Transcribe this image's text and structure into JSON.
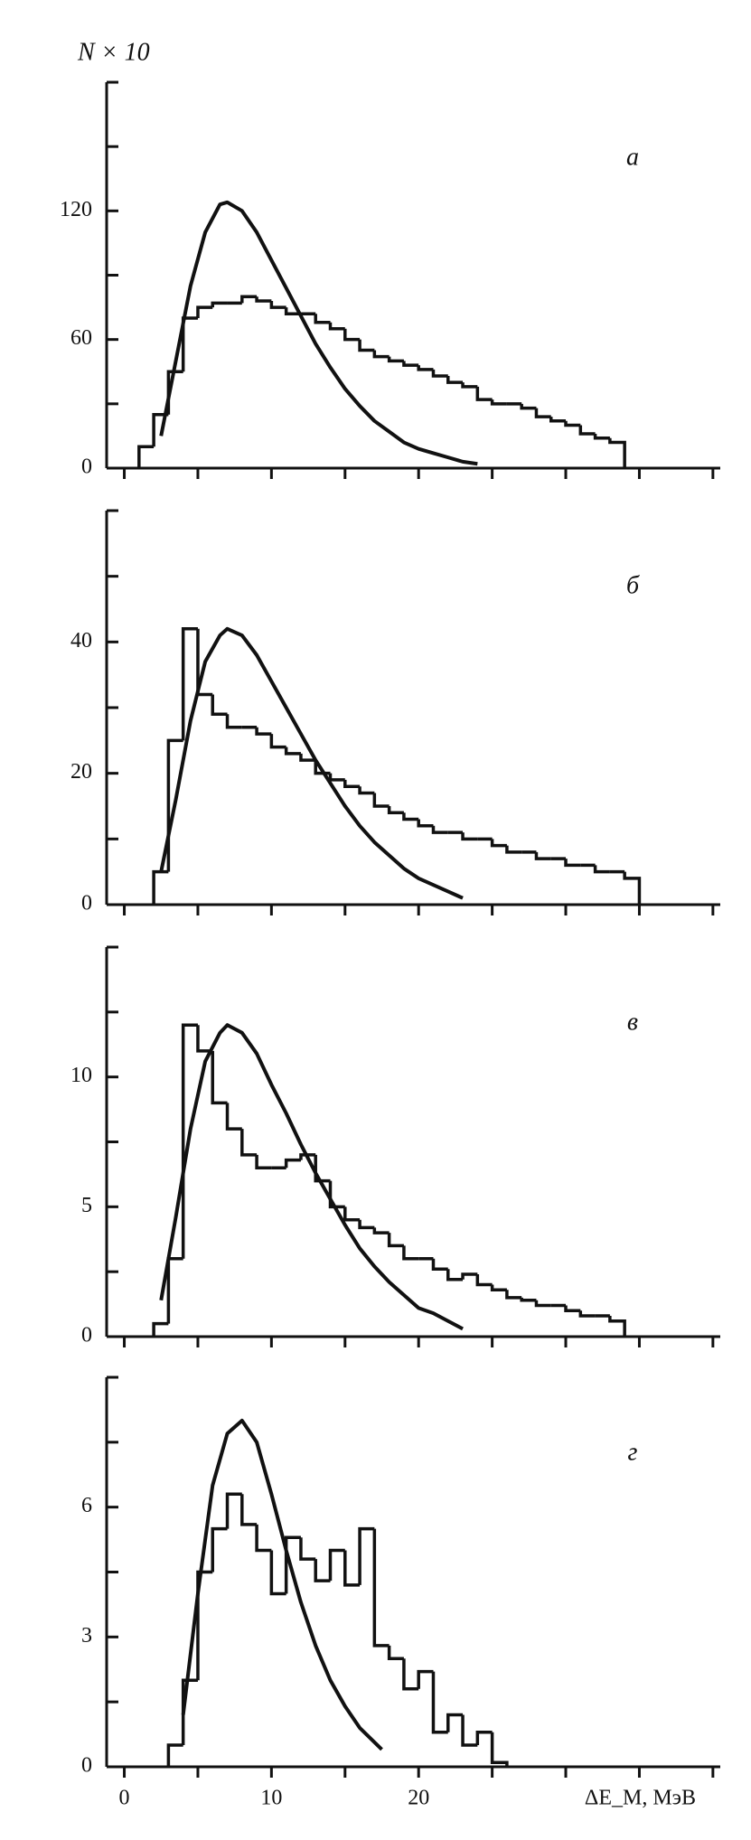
{
  "chart_data": [
    {
      "type": "histogram",
      "label": "а",
      "ylabel": "N × 10",
      "color": "#111111",
      "xlim": [
        -1.2,
        40.5
      ],
      "xticks": [
        0,
        10,
        20
      ],
      "x_minor_ticks": [
        5,
        15,
        25,
        30,
        35,
        40
      ],
      "ylim": [
        0,
        180
      ],
      "yticks": [
        0,
        60,
        120
      ],
      "y_minor_ticks": [
        30,
        90,
        150,
        180
      ],
      "bins": [
        1,
        2,
        3,
        4,
        5,
        6,
        7,
        8,
        9,
        10,
        11,
        12,
        13,
        14,
        15,
        16,
        17,
        18,
        19,
        20,
        21,
        22,
        23,
        24,
        25,
        26,
        27,
        28,
        29,
        30,
        31,
        32,
        33,
        34
      ],
      "values": [
        10,
        25,
        45,
        70,
        75,
        77,
        77,
        80,
        78,
        75,
        72,
        72,
        68,
        65,
        60,
        55,
        52,
        50,
        48,
        46,
        43,
        40,
        38,
        32,
        30,
        30,
        28,
        24,
        22,
        20,
        16,
        14,
        12
      ],
      "curve": {
        "x": [
          2.5,
          3.5,
          4.5,
          5.5,
          6.5,
          7,
          8,
          9,
          10,
          11,
          12,
          13,
          14,
          15,
          16,
          17,
          18,
          19,
          20,
          21,
          22,
          23,
          24
        ],
        "values": [
          15,
          50,
          85,
          110,
          123,
          124,
          120,
          110,
          97,
          84,
          71,
          58,
          47,
          37,
          29,
          22,
          17,
          12,
          9,
          7,
          5,
          3,
          2
        ]
      }
    },
    {
      "type": "histogram",
      "label": "б",
      "color": "#111111",
      "xlim": [
        -1.2,
        40.5
      ],
      "xticks": [
        0,
        10,
        20
      ],
      "x_minor_ticks": [
        5,
        15,
        25,
        30,
        35,
        40
      ],
      "ylim": [
        0,
        60
      ],
      "yticks": [
        0,
        20,
        40
      ],
      "y_minor_ticks": [
        10,
        30,
        50,
        60
      ],
      "bins": [
        2,
        3,
        4,
        5,
        6,
        7,
        8,
        9,
        10,
        11,
        12,
        13,
        14,
        15,
        16,
        17,
        18,
        19,
        20,
        21,
        22,
        23,
        24,
        25,
        26,
        27,
        28,
        29,
        30,
        31,
        32,
        33,
        34,
        35
      ],
      "values": [
        5,
        25,
        42,
        32,
        29,
        27,
        27,
        26,
        24,
        23,
        22,
        20,
        19,
        18,
        17,
        15,
        14,
        13,
        12,
        11,
        11,
        10,
        10,
        9,
        8,
        8,
        7,
        7,
        6,
        6,
        5,
        5,
        4
      ],
      "curve": {
        "x": [
          2.5,
          3.5,
          4.5,
          5.5,
          6.5,
          7,
          8,
          9,
          10,
          11,
          12,
          13,
          14,
          15,
          16,
          17,
          18,
          19,
          20,
          21,
          22,
          23
        ],
        "values": [
          5,
          16,
          28,
          37,
          41,
          42,
          41,
          38,
          34,
          30,
          26,
          22,
          18.5,
          15,
          12,
          9.5,
          7.5,
          5.5,
          4,
          3,
          2,
          1
        ]
      }
    },
    {
      "type": "histogram",
      "label": "в",
      "color": "#111111",
      "xlim": [
        -1.2,
        40.5
      ],
      "xticks": [
        0,
        10,
        20
      ],
      "x_minor_ticks": [
        5,
        15,
        25,
        30,
        35,
        40
      ],
      "ylim": [
        0,
        15
      ],
      "yticks": [
        0,
        5,
        10
      ],
      "y_minor_ticks": [
        2.5,
        7.5,
        12.5,
        15
      ],
      "bins": [
        2,
        3,
        4,
        5,
        6,
        7,
        8,
        9,
        10,
        11,
        12,
        13,
        14,
        15,
        16,
        17,
        18,
        19,
        20,
        21,
        22,
        23,
        24,
        25,
        26,
        27,
        28,
        29,
        30,
        31,
        32,
        33,
        34
      ],
      "values": [
        0.5,
        3,
        12,
        11,
        9,
        8,
        7,
        6.5,
        6.5,
        6.8,
        7,
        6,
        5,
        4.5,
        4.2,
        4,
        3.5,
        3,
        3,
        2.6,
        2.2,
        2.4,
        2,
        1.8,
        1.5,
        1.4,
        1.2,
        1.2,
        1,
        0.8,
        0.8,
        0.6
      ],
      "curve": {
        "x": [
          2.5,
          3.5,
          4.5,
          5.5,
          6.5,
          7,
          8,
          9,
          10,
          11,
          12,
          13,
          14,
          15,
          16,
          17,
          18,
          19,
          20,
          21,
          22,
          23
        ],
        "values": [
          1.4,
          4.6,
          8,
          10.6,
          11.7,
          12,
          11.7,
          10.9,
          9.7,
          8.6,
          7.4,
          6.3,
          5.3,
          4.3,
          3.4,
          2.7,
          2.1,
          1.6,
          1.1,
          0.9,
          0.6,
          0.3
        ]
      }
    },
    {
      "type": "histogram",
      "label": "г",
      "xlabel": "ΔE_M, МэВ",
      "color": "#111111",
      "xlim": [
        -1.2,
        40.5
      ],
      "xticks": [
        0,
        10,
        20
      ],
      "x_minor_ticks": [
        5,
        15,
        25,
        30,
        35,
        40
      ],
      "ylim": [
        0,
        9
      ],
      "yticks": [
        0,
        3,
        6
      ],
      "y_minor_ticks": [
        1.5,
        4.5,
        7.5,
        9
      ],
      "bins": [
        3,
        4,
        5,
        6,
        7,
        8,
        9,
        10,
        11,
        12,
        13,
        14,
        15,
        16,
        17,
        18,
        19,
        20,
        21,
        22,
        23,
        24,
        25,
        26
      ],
      "values": [
        0.5,
        2,
        4.5,
        5.5,
        6.3,
        5.6,
        5,
        4,
        5.3,
        4.8,
        4.3,
        5,
        4.2,
        5.5,
        2.8,
        2.5,
        1.8,
        2.2,
        0.8,
        1.2,
        0.5,
        0.8,
        0.1
      ],
      "curve": {
        "x": [
          4,
          5,
          6,
          7,
          8,
          9,
          10,
          11,
          12,
          13,
          14,
          15,
          16,
          17.5
        ],
        "values": [
          1.2,
          4,
          6.5,
          7.7,
          8,
          7.5,
          6.3,
          5,
          3.8,
          2.8,
          2,
          1.4,
          0.9,
          0.4
        ]
      }
    }
  ]
}
